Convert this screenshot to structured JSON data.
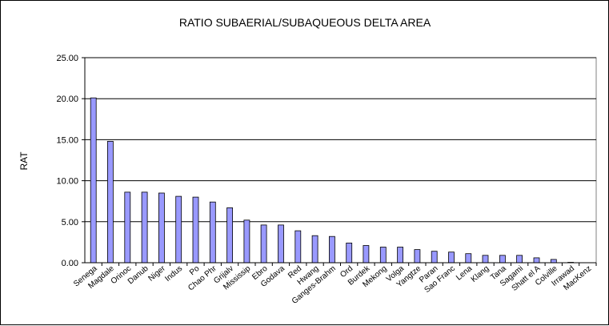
{
  "chart_data": {
    "type": "bar",
    "title": "RATIO SUBAERIAL/SUBAQUEOUS DELTA AREA",
    "ylabel": "RAT",
    "xlabel": "",
    "ylim": [
      0,
      25
    ],
    "yticks": [
      "0.00",
      "5.00",
      "10.00",
      "15.00",
      "20.00",
      "25.00"
    ],
    "grid": true,
    "legend": "none",
    "bar_color": "#9999ff",
    "categories": [
      "Senega",
      "Magdale",
      "Orinoc",
      "Danub",
      "Niger",
      "Indus",
      "Po",
      "Chao Phr",
      "Grijalv",
      "Mississip",
      "Ebro",
      "Godava",
      "Red",
      "Hwang",
      "Ganges-Brahm",
      "Ord",
      "Burdek",
      "Mekong",
      "Volga",
      "Yangtze",
      "Paran",
      "Sao Franc",
      "Lena",
      "Klang",
      "Tana",
      "Sagami",
      "Shatt el A",
      "Colville",
      "Irrawad",
      "MacKenz"
    ],
    "values": [
      20.1,
      14.8,
      8.6,
      8.6,
      8.5,
      8.1,
      8.0,
      7.4,
      6.7,
      5.2,
      4.6,
      4.6,
      3.9,
      3.3,
      3.2,
      2.4,
      2.1,
      1.9,
      1.9,
      1.6,
      1.4,
      1.3,
      1.1,
      0.9,
      0.9,
      0.9,
      0.6,
      0.4,
      0.05,
      0.0
    ]
  }
}
